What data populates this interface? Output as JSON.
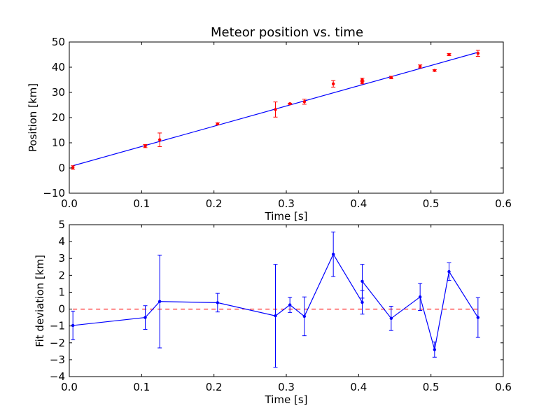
{
  "chart_data": [
    {
      "type": "scatter",
      "title": "Meteor position vs. time",
      "xlabel": "Time [s]",
      "ylabel": "Position [km]",
      "xlim": [
        0,
        0.6
      ],
      "ylim": [
        -10,
        50
      ],
      "xticks": [
        "0.0",
        "0.1",
        "0.2",
        "0.3",
        "0.4",
        "0.5",
        "0.6"
      ],
      "yticks": [
        "−10",
        "0",
        "10",
        "20",
        "30",
        "40",
        "50"
      ],
      "grid": false,
      "points": {
        "x": [
          0.005,
          0.105,
          0.125,
          0.205,
          0.285,
          0.305,
          0.325,
          0.365,
          0.405,
          0.405,
          0.445,
          0.485,
          0.505,
          0.525,
          0.565
        ],
        "y": [
          0.2,
          8.7,
          11.2,
          17.5,
          23.2,
          25.5,
          26.3,
          33.4,
          34.0,
          35.0,
          35.9,
          40.3,
          38.7,
          45.0,
          45.5
        ],
        "err": [
          0.7,
          0.6,
          2.7,
          0.4,
          3.0,
          0.2,
          1.0,
          1.3,
          0.6,
          0.6,
          0.5,
          0.6,
          0.3,
          0.4,
          1.2
        ],
        "color": "#ff0000"
      },
      "fit": {
        "x": [
          0.005,
          0.565
        ],
        "y": [
          0.9,
          45.9
        ],
        "color": "#0000ff"
      }
    },
    {
      "type": "line",
      "title": "",
      "xlabel": "Time [s]",
      "ylabel": "Fit deviation [km]",
      "xlim": [
        0,
        0.6
      ],
      "ylim": [
        -4,
        5
      ],
      "xticks": [
        "0.0",
        "0.1",
        "0.2",
        "0.3",
        "0.4",
        "0.5",
        "0.6"
      ],
      "yticks": [
        "−4",
        "−3",
        "−2",
        "−1",
        "0",
        "1",
        "2",
        "3",
        "4",
        "5"
      ],
      "grid": false,
      "series": {
        "x": [
          0.005,
          0.105,
          0.125,
          0.205,
          0.285,
          0.305,
          0.325,
          0.365,
          0.405,
          0.405,
          0.445,
          0.485,
          0.505,
          0.525,
          0.565
        ],
        "y": [
          -0.97,
          -0.5,
          0.45,
          0.38,
          -0.4,
          0.25,
          -0.43,
          3.25,
          0.4,
          1.65,
          -0.55,
          0.72,
          -2.4,
          2.22,
          -0.5
        ],
        "err": [
          0.85,
          0.7,
          2.75,
          0.55,
          3.05,
          0.45,
          1.15,
          1.32,
          0.7,
          1.0,
          0.72,
          0.8,
          0.45,
          0.52,
          1.18
        ],
        "color": "#0000ff"
      },
      "reference": {
        "y": 0,
        "style": "dashed",
        "color": "#ff0000"
      }
    }
  ]
}
